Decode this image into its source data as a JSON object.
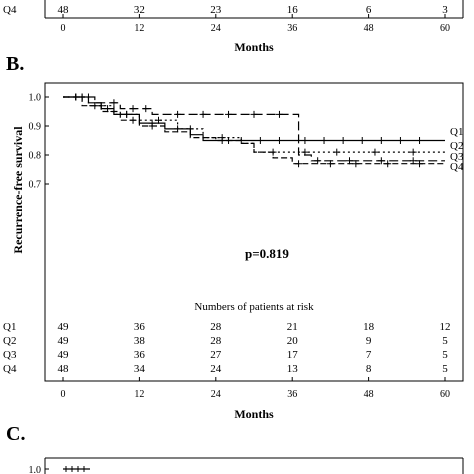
{
  "top_panel": {
    "risk_row": {
      "label": "Q4",
      "values": [
        "48",
        "32",
        "23",
        "16",
        "6",
        "3"
      ]
    },
    "x_ticks": [
      "0",
      "12",
      "24",
      "36",
      "48",
      "60"
    ],
    "xlabel": "Months"
  },
  "panel_b": {
    "letter": "B.",
    "p_value": "p=0.819",
    "risk_title": "Numbers of patients at risk",
    "risk_rows": [
      {
        "label": "Q1",
        "values": [
          "49",
          "36",
          "28",
          "21",
          "18",
          "12"
        ]
      },
      {
        "label": "Q2",
        "values": [
          "49",
          "38",
          "28",
          "20",
          "9",
          "5"
        ]
      },
      {
        "label": "Q3",
        "values": [
          "49",
          "36",
          "27",
          "17",
          "7",
          "5"
        ]
      },
      {
        "label": "Q4",
        "values": [
          "48",
          "34",
          "24",
          "13",
          "8",
          "5"
        ]
      }
    ]
  },
  "panel_c": {
    "letter": "C.",
    "y_tick": "1.0"
  },
  "chart_data": {
    "type": "line",
    "xlabel": "Months",
    "ylabel": "Recurrence-free survival",
    "xlim": [
      0,
      60
    ],
    "ylim": [
      0.7,
      1.0
    ],
    "x_ticks": [
      0,
      12,
      24,
      36,
      48,
      60
    ],
    "y_ticks": [
      0.7,
      0.8,
      0.9,
      1.0
    ],
    "legend": "right",
    "series": [
      {
        "name": "Q1",
        "dash": "",
        "end_y": 0.85,
        "steps": [
          [
            0,
            1.0
          ],
          [
            4,
            0.98
          ],
          [
            6,
            0.96
          ],
          [
            8,
            0.94
          ],
          [
            12,
            0.91
          ],
          [
            16,
            0.89
          ],
          [
            20,
            0.87
          ],
          [
            22,
            0.85
          ],
          [
            60,
            0.85
          ]
        ],
        "censors": [
          [
            2,
            1.0
          ],
          [
            3,
            1.0
          ],
          [
            7,
            0.96
          ],
          [
            10,
            0.94
          ],
          [
            14,
            0.91
          ],
          [
            18,
            0.89
          ],
          [
            25,
            0.85
          ],
          [
            28,
            0.85
          ],
          [
            31,
            0.85
          ],
          [
            34,
            0.85
          ],
          [
            38,
            0.85
          ],
          [
            41,
            0.85
          ],
          [
            44,
            0.85
          ],
          [
            47,
            0.85
          ],
          [
            50,
            0.85
          ],
          [
            53,
            0.85
          ],
          [
            56,
            0.85
          ]
        ]
      },
      {
        "name": "Q2",
        "dash": "6,3",
        "end_y": 0.77,
        "steps": [
          [
            0,
            1.0
          ],
          [
            3,
            0.97
          ],
          [
            6,
            0.95
          ],
          [
            9,
            0.92
          ],
          [
            12,
            0.9
          ],
          [
            16,
            0.88
          ],
          [
            20,
            0.86
          ],
          [
            24,
            0.85
          ],
          [
            28,
            0.84
          ],
          [
            30,
            0.81
          ],
          [
            33,
            0.79
          ],
          [
            36,
            0.77
          ],
          [
            60,
            0.77
          ]
        ],
        "censors": [
          [
            2,
            1.0
          ],
          [
            5,
            0.97
          ],
          [
            8,
            0.95
          ],
          [
            11,
            0.92
          ],
          [
            14,
            0.9
          ],
          [
            26,
            0.85
          ],
          [
            37,
            0.77
          ],
          [
            42,
            0.77
          ],
          [
            46,
            0.77
          ],
          [
            51,
            0.77
          ],
          [
            56,
            0.77
          ]
        ]
      },
      {
        "name": "Q3",
        "dash": "2,3",
        "end_y": 0.81,
        "steps": [
          [
            0,
            1.0
          ],
          [
            4,
            0.97
          ],
          [
            8,
            0.94
          ],
          [
            12,
            0.92
          ],
          [
            18,
            0.89
          ],
          [
            22,
            0.86
          ],
          [
            28,
            0.84
          ],
          [
            30,
            0.81
          ],
          [
            60,
            0.81
          ]
        ],
        "censors": [
          [
            3,
            1.0
          ],
          [
            6,
            0.97
          ],
          [
            10,
            0.94
          ],
          [
            15,
            0.92
          ],
          [
            20,
            0.89
          ],
          [
            25,
            0.86
          ],
          [
            33,
            0.81
          ],
          [
            38,
            0.81
          ],
          [
            43,
            0.81
          ],
          [
            49,
            0.81
          ],
          [
            55,
            0.81
          ]
        ]
      },
      {
        "name": "Q4",
        "dash": "9,4",
        "end_y": 0.78,
        "steps": [
          [
            0,
            1.0
          ],
          [
            5,
            0.98
          ],
          [
            9,
            0.96
          ],
          [
            14,
            0.94
          ],
          [
            36,
            0.94
          ],
          [
            37,
            0.8
          ],
          [
            39,
            0.78
          ],
          [
            60,
            0.78
          ]
        ],
        "censors": [
          [
            2,
            1.0
          ],
          [
            4,
            1.0
          ],
          [
            8,
            0.98
          ],
          [
            11,
            0.96
          ],
          [
            13,
            0.96
          ],
          [
            18,
            0.94
          ],
          [
            22,
            0.94
          ],
          [
            26,
            0.94
          ],
          [
            30,
            0.94
          ],
          [
            34,
            0.94
          ],
          [
            40,
            0.78
          ],
          [
            45,
            0.78
          ],
          [
            50,
            0.78
          ],
          [
            55,
            0.78
          ]
        ]
      }
    ]
  }
}
